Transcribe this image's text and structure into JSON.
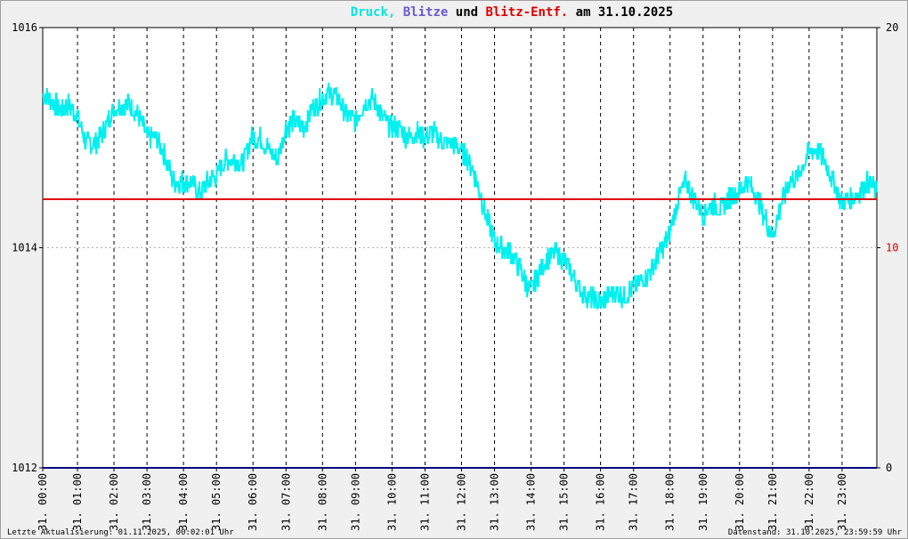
{
  "chart_data": {
    "type": "line",
    "title": {
      "parts": [
        {
          "text": "Druck,",
          "color": "#00e5e5"
        },
        {
          "text": "Blitze",
          "color": "#6a5acd"
        },
        {
          "text": "und",
          "color": "#000000"
        },
        {
          "text": "Blitz-Entf.",
          "color": "#dd0000"
        },
        {
          "text": "am 31.10.2025",
          "color": "#000000"
        }
      ]
    },
    "x_ticks": [
      "31. 00:00",
      "31. 01:00",
      "31. 02:00",
      "31. 03:00",
      "31. 04:00",
      "31. 05:00",
      "31. 06:00",
      "31. 07:00",
      "31. 08:00",
      "31. 09:00",
      "31. 10:00",
      "31. 11:00",
      "31. 12:00",
      "31. 13:00",
      "31. 14:00",
      "31. 15:00",
      "31. 16:00",
      "31. 17:00",
      "31. 18:00",
      "31. 19:00",
      "31. 20:00",
      "31. 21:00",
      "31. 22:00",
      "31. 23:00"
    ],
    "y_left": {
      "min": 1012,
      "max": 1016,
      "ticks": [
        "1016",
        "1014",
        "1012"
      ]
    },
    "y_right": {
      "min": 0,
      "max": 20,
      "ticks": [
        "20",
        "10",
        "0"
      ]
    },
    "grid": true,
    "series": [
      {
        "color": "#00f0f0",
        "axis": "left",
        "x": [
          0,
          0.25,
          0.5,
          0.75,
          1,
          1.25,
          1.5,
          1.75,
          2,
          2.25,
          2.5,
          2.75,
          3,
          3.25,
          3.5,
          3.75,
          4,
          4.25,
          4.5,
          4.75,
          5,
          5.25,
          5.5,
          5.75,
          6,
          6.25,
          6.5,
          6.75,
          7,
          7.25,
          7.5,
          7.75,
          8,
          8.25,
          8.5,
          8.75,
          9,
          9.25,
          9.5,
          9.75,
          10,
          10.25,
          10.5,
          10.75,
          11,
          11.25,
          11.5,
          11.75,
          12,
          12.25,
          12.5,
          12.75,
          13,
          13.25,
          13.5,
          13.75,
          14,
          14.25,
          14.5,
          14.75,
          15,
          15.25,
          15.5,
          15.75,
          16,
          16.25,
          16.5,
          16.75,
          17,
          17.25,
          17.5,
          17.75,
          18,
          18.25,
          18.5,
          18.75,
          19,
          19.25,
          19.5,
          19.75,
          20,
          20.25,
          20.5,
          20.75,
          21,
          21.25,
          21.5,
          21.75,
          22,
          22.25,
          22.5,
          22.75,
          23,
          23.25,
          23.5,
          23.75,
          24
        ],
        "y": [
          1015.4,
          1015.35,
          1015.25,
          1015.3,
          1015.2,
          1014.95,
          1014.95,
          1015.05,
          1015.25,
          1015.3,
          1015.3,
          1015.2,
          1015.0,
          1015.0,
          1014.85,
          1014.6,
          1014.6,
          1014.6,
          1014.5,
          1014.6,
          1014.65,
          1014.8,
          1014.8,
          1014.75,
          1015.0,
          1015.0,
          1014.9,
          1014.8,
          1015.1,
          1015.15,
          1015.1,
          1015.25,
          1015.35,
          1015.4,
          1015.35,
          1015.2,
          1015.15,
          1015.3,
          1015.35,
          1015.2,
          1015.1,
          1015.1,
          1015.0,
          1015.05,
          1015.0,
          1015.05,
          1014.95,
          1014.95,
          1014.9,
          1014.8,
          1014.6,
          1014.3,
          1014.05,
          1014.0,
          1013.95,
          1013.8,
          1013.6,
          1013.75,
          1013.9,
          1013.95,
          1013.9,
          1013.75,
          1013.6,
          1013.55,
          1013.5,
          1013.55,
          1013.6,
          1013.55,
          1013.65,
          1013.7,
          1013.8,
          1013.95,
          1014.1,
          1014.4,
          1014.6,
          1014.45,
          1014.3,
          1014.4,
          1014.35,
          1014.45,
          1014.5,
          1014.6,
          1014.5,
          1014.3,
          1014.1,
          1014.4,
          1014.6,
          1014.65,
          1014.85,
          1014.9,
          1014.8,
          1014.6,
          1014.4,
          1014.45,
          1014.5,
          1014.6,
          1014.5
        ]
      },
      {
        "color": "#dd0000",
        "axis": "right",
        "x": [
          0,
          24
        ],
        "y": [
          12.2,
          12.2
        ]
      },
      {
        "color": "#000080",
        "axis": "right",
        "x": [
          0,
          24
        ],
        "y": [
          0,
          0
        ]
      }
    ],
    "footer_left": "Letzte Aktualisierung: 01.11.2025, 00:02:01 Uhr",
    "footer_right": "Datenstand: 31.10.2025, 23:59:59 Uhr"
  }
}
